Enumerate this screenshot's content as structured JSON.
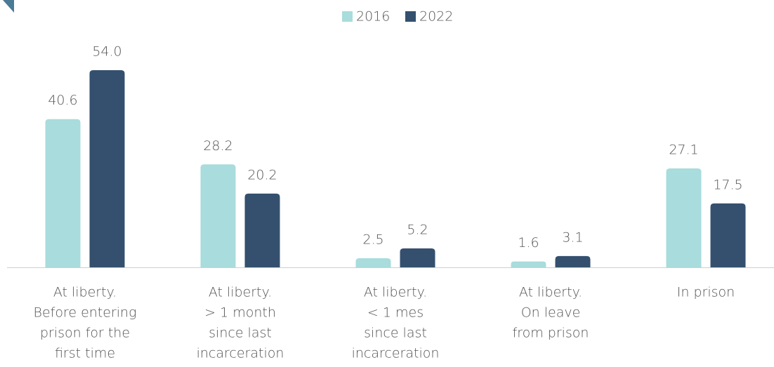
{
  "chart_data": {
    "type": "bar",
    "categories": [
      [
        "At liberty.",
        "Before entering",
        "prison for the",
        "first time"
      ],
      [
        "At liberty.",
        "> 1 month",
        "since last",
        "incarceration"
      ],
      [
        "At liberty.",
        "< 1 mes",
        "since last",
        "incarceration"
      ],
      [
        "At liberty.",
        "On leave",
        "from prison"
      ],
      [
        "In prison"
      ]
    ],
    "series": [
      {
        "name": "2016",
        "color": "#a9dcdc",
        "values": [
          40.6,
          28.2,
          2.5,
          1.6,
          27.1
        ],
        "value_labels": [
          "40.6",
          "28.2",
          "2.5",
          "1.6",
          "27.1"
        ]
      },
      {
        "name": "2022",
        "color": "#34506e",
        "values": [
          54.0,
          20.2,
          5.2,
          3.1,
          17.5
        ],
        "value_labels": [
          "54.0",
          "20.2",
          "5.2",
          "3.1",
          "17.5"
        ]
      }
    ],
    "ylim": [
      0,
      54
    ],
    "legend": "top"
  }
}
